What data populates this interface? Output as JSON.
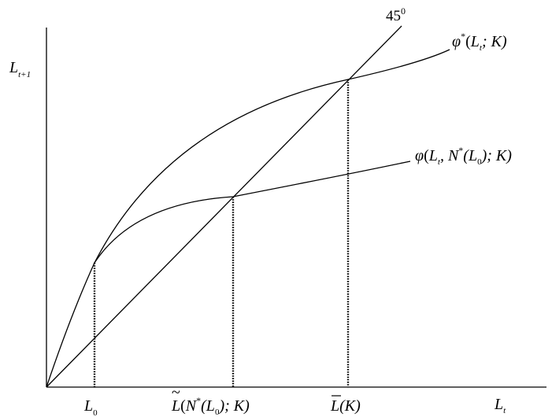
{
  "axes": {
    "y_label": {
      "main": "L",
      "sub": "t+1"
    },
    "x_label": {
      "main": "L",
      "sub": "t"
    }
  },
  "diagonal_label": {
    "main": "45",
    "sup": "0"
  },
  "curve_upper_label": {
    "phi": "φ",
    "star": "*",
    "open": "(",
    "L": "L",
    "t": "t",
    "rest": "; K)"
  },
  "curve_lower_label": {
    "phi": "φ",
    "open": "(",
    "L": "L",
    "t": "t",
    "sep": ", N",
    "star": "*",
    "open2": "(L",
    "zero": "0",
    "close": "); K)"
  },
  "x_ticks": {
    "l0": {
      "main": "L",
      "sub": "0"
    },
    "ltilde": {
      "accent": "~",
      "L": "L",
      "open": "(",
      "N": "N",
      "star": "*",
      "open2": "(L",
      "zero": "0",
      "close": "); K)"
    },
    "lbar": {
      "L": "L",
      "rest": "(K)"
    }
  }
}
